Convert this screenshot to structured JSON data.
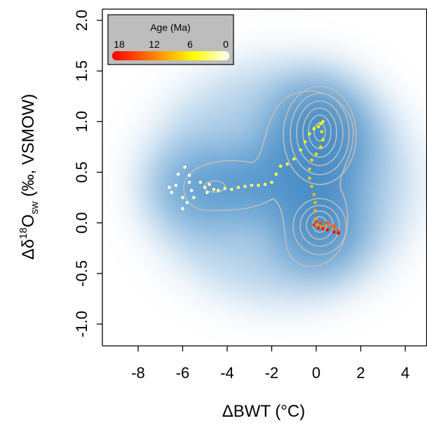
{
  "chart_data": {
    "type": "scatter",
    "title": "",
    "xlabel": "ΔBWT (°C)",
    "ylabel": {
      "prefix": "Δδ",
      "sup": "18",
      "main": "O",
      "sub": "sw",
      "suffix": " (‰, VSMOW)"
    },
    "xlim": [
      -9.1,
      4.9
    ],
    "ylim": [
      -1.1,
      2.1
    ],
    "x_ticks": [
      "-8",
      "-6",
      "-4",
      "-2",
      "0",
      "2",
      "4"
    ],
    "y_ticks": [
      "-1.0",
      "-0.5",
      "0.0",
      "0.5",
      "1.0",
      "1.5",
      "2.0"
    ],
    "grid": false,
    "background": "2D kernel density (blue) with grey contour lines",
    "density_color": "#1f6fb5",
    "contour_color": "#b9b9b9",
    "density_modes": [
      {
        "x": 0.1,
        "y": 0.88
      },
      {
        "x": 0.1,
        "y": -0.03
      },
      {
        "x": -4.5,
        "y": 0.35
      }
    ],
    "legend": {
      "title": "Age (Ma)",
      "ticks": [
        "18",
        "12",
        "6",
        "0"
      ],
      "position": "top-left",
      "colorbar": [
        "#ff0000",
        "#ff7f00",
        "#ffff00",
        "#ffffff"
      ]
    },
    "color_variable": "Age (Ma)",
    "series": [
      {
        "values": [
          {
            "x": -6.5,
            "y": 0.3,
            "age": 0.0
          },
          {
            "x": -6.2,
            "y": 0.48,
            "age": 0.1
          },
          {
            "x": -6.3,
            "y": 0.37,
            "age": 0.2
          },
          {
            "x": -6.0,
            "y": 0.25,
            "age": 0.3
          },
          {
            "x": -5.9,
            "y": 0.55,
            "age": 0.4
          },
          {
            "x": -6.0,
            "y": 0.14,
            "age": 0.5
          },
          {
            "x": -5.7,
            "y": 0.4,
            "age": 0.6
          },
          {
            "x": -5.8,
            "y": 0.2,
            "age": 0.7
          },
          {
            "x": -5.6,
            "y": 0.32,
            "age": 0.8
          },
          {
            "x": -5.7,
            "y": 0.47,
            "age": 0.9
          },
          {
            "x": -6.6,
            "y": 0.35,
            "age": 1.0
          },
          {
            "x": -5.5,
            "y": 0.25,
            "age": 1.1
          },
          {
            "x": -5.2,
            "y": 0.4,
            "age": 1.3
          },
          {
            "x": -5.0,
            "y": 0.35,
            "age": 1.5
          },
          {
            "x": -4.9,
            "y": 0.3,
            "age": 1.8
          },
          {
            "x": -4.8,
            "y": 0.38,
            "age": 2.0
          },
          {
            "x": -4.6,
            "y": 0.33,
            "age": 2.2
          },
          {
            "x": -4.4,
            "y": 0.32,
            "age": 2.4
          },
          {
            "x": -4.1,
            "y": 0.34,
            "age": 2.6
          },
          {
            "x": -3.8,
            "y": 0.33,
            "age": 2.8
          },
          {
            "x": -3.5,
            "y": 0.35,
            "age": 3.0
          },
          {
            "x": -3.2,
            "y": 0.36,
            "age": 3.2
          },
          {
            "x": -2.9,
            "y": 0.37,
            "age": 3.4
          },
          {
            "x": -2.6,
            "y": 0.37,
            "age": 3.6
          },
          {
            "x": -2.3,
            "y": 0.38,
            "age": 3.8
          },
          {
            "x": -2.0,
            "y": 0.4,
            "age": 4.0
          },
          {
            "x": -1.8,
            "y": 0.48,
            "age": 4.2
          },
          {
            "x": -1.6,
            "y": 0.56,
            "age": 4.4
          },
          {
            "x": -1.3,
            "y": 0.58,
            "age": 4.6
          },
          {
            "x": -1.0,
            "y": 0.63,
            "age": 4.8
          },
          {
            "x": -0.7,
            "y": 0.72,
            "age": 5.0
          },
          {
            "x": -0.5,
            "y": 0.8,
            "age": 5.2
          },
          {
            "x": -0.3,
            "y": 0.88,
            "age": 5.4
          },
          {
            "x": -0.1,
            "y": 0.93,
            "age": 5.6
          },
          {
            "x": 0.1,
            "y": 0.95,
            "age": 5.8
          },
          {
            "x": 0.2,
            "y": 0.98,
            "age": 6.0
          },
          {
            "x": 0.3,
            "y": 1.0,
            "age": 6.3
          },
          {
            "x": 0.25,
            "y": 0.9,
            "age": 6.6
          },
          {
            "x": 0.3,
            "y": 0.82,
            "age": 6.9
          },
          {
            "x": 0.2,
            "y": 0.75,
            "age": 7.2
          },
          {
            "x": 0.0,
            "y": 0.68,
            "age": 7.5
          },
          {
            "x": -0.2,
            "y": 0.62,
            "age": 7.8
          },
          {
            "x": -0.3,
            "y": 0.53,
            "age": 8.1
          },
          {
            "x": -0.3,
            "y": 0.44,
            "age": 8.4
          },
          {
            "x": -0.2,
            "y": 0.36,
            "age": 8.7
          },
          {
            "x": -0.1,
            "y": 0.28,
            "age": 9.0
          },
          {
            "x": -0.05,
            "y": 0.2,
            "age": 9.3
          },
          {
            "x": -0.05,
            "y": 0.12,
            "age": 9.6
          },
          {
            "x": 0.0,
            "y": 0.04,
            "age": 10.0
          },
          {
            "x": 0.05,
            "y": -0.02,
            "age": 10.5
          },
          {
            "x": 0.2,
            "y": -0.04,
            "age": 11.0
          },
          {
            "x": 0.4,
            "y": -0.03,
            "age": 11.5
          },
          {
            "x": 0.6,
            "y": -0.02,
            "age": 12.0
          },
          {
            "x": 0.8,
            "y": -0.05,
            "age": 12.5
          },
          {
            "x": 1.0,
            "y": -0.08,
            "age": 13.0
          },
          {
            "x": 0.8,
            "y": -0.03,
            "age": 13.5
          },
          {
            "x": 0.5,
            "y": 0.0,
            "age": 14.0
          },
          {
            "x": 0.2,
            "y": 0.0,
            "age": 14.5
          },
          {
            "x": 0.0,
            "y": 0.01,
            "age": 15.0
          },
          {
            "x": -0.1,
            "y": -0.02,
            "age": 15.5
          },
          {
            "x": 0.1,
            "y": -0.05,
            "age": 16.0
          },
          {
            "x": 0.3,
            "y": -0.06,
            "age": 16.5
          },
          {
            "x": 0.5,
            "y": -0.07,
            "age": 17.0
          },
          {
            "x": 0.8,
            "y": -0.09,
            "age": 17.5
          },
          {
            "x": 1.0,
            "y": -0.1,
            "age": 18.0
          }
        ]
      }
    ]
  }
}
